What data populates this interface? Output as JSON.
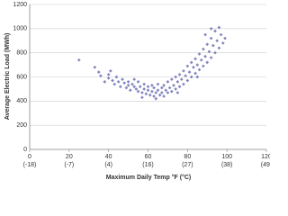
{
  "chart_data": {
    "type": "scatter",
    "x_label": "Maximum Daily Temp °F (°C)",
    "y_label": "Average Electric Load (MWh)",
    "xlim": [
      0,
      120
    ],
    "xticks": [
      0,
      20,
      40,
      60,
      80,
      100,
      120
    ],
    "xticks_celsius": [
      "(-18)",
      "(-7)",
      "(4)",
      "(16)",
      "(27)",
      "(38)",
      "(49)"
    ],
    "ylim": [
      0,
      1200
    ],
    "yticks": [
      0,
      200,
      400,
      600,
      800,
      1000,
      1200
    ],
    "grid": true,
    "color": "#6b70b3",
    "x": [
      25,
      33,
      36,
      38,
      40,
      40,
      42,
      43,
      44,
      45,
      46,
      47,
      48,
      49,
      50,
      50,
      51,
      52,
      53,
      54,
      55,
      55,
      56,
      57,
      58,
      58,
      59,
      60,
      60,
      61,
      62,
      62,
      63,
      63,
      64,
      65,
      65,
      66,
      67,
      67,
      68,
      68,
      69,
      70,
      70,
      71,
      72,
      72,
      73,
      74,
      74,
      75,
      76,
      76,
      77,
      78,
      78,
      79,
      80,
      80,
      81,
      82,
      82,
      83,
      84,
      84,
      85,
      86,
      86,
      87,
      88,
      88,
      89,
      90,
      90,
      91,
      92,
      92,
      93,
      94,
      94,
      95,
      96,
      96,
      97,
      98,
      99,
      35,
      41,
      53,
      57,
      64,
      75,
      85,
      92,
      89
    ],
    "y": [
      740,
      680,
      610,
      560,
      620,
      590,
      570,
      540,
      600,
      560,
      520,
      580,
      550,
      510,
      560,
      530,
      490,
      540,
      520,
      500,
      560,
      480,
      520,
      470,
      540,
      500,
      460,
      520,
      490,
      450,
      530,
      480,
      510,
      440,
      470,
      540,
      490,
      450,
      510,
      470,
      530,
      440,
      490,
      560,
      470,
      510,
      580,
      480,
      530,
      600,
      500,
      560,
      620,
      520,
      580,
      650,
      540,
      610,
      690,
      570,
      640,
      720,
      600,
      680,
      750,
      630,
      700,
      790,
      660,
      740,
      830,
      690,
      770,
      870,
      720,
      810,
      920,
      760,
      860,
      980,
      800,
      900,
      1010,
      840,
      950,
      880,
      920,
      640,
      650,
      580,
      430,
      420,
      470,
      600,
      1000,
      950
    ]
  }
}
